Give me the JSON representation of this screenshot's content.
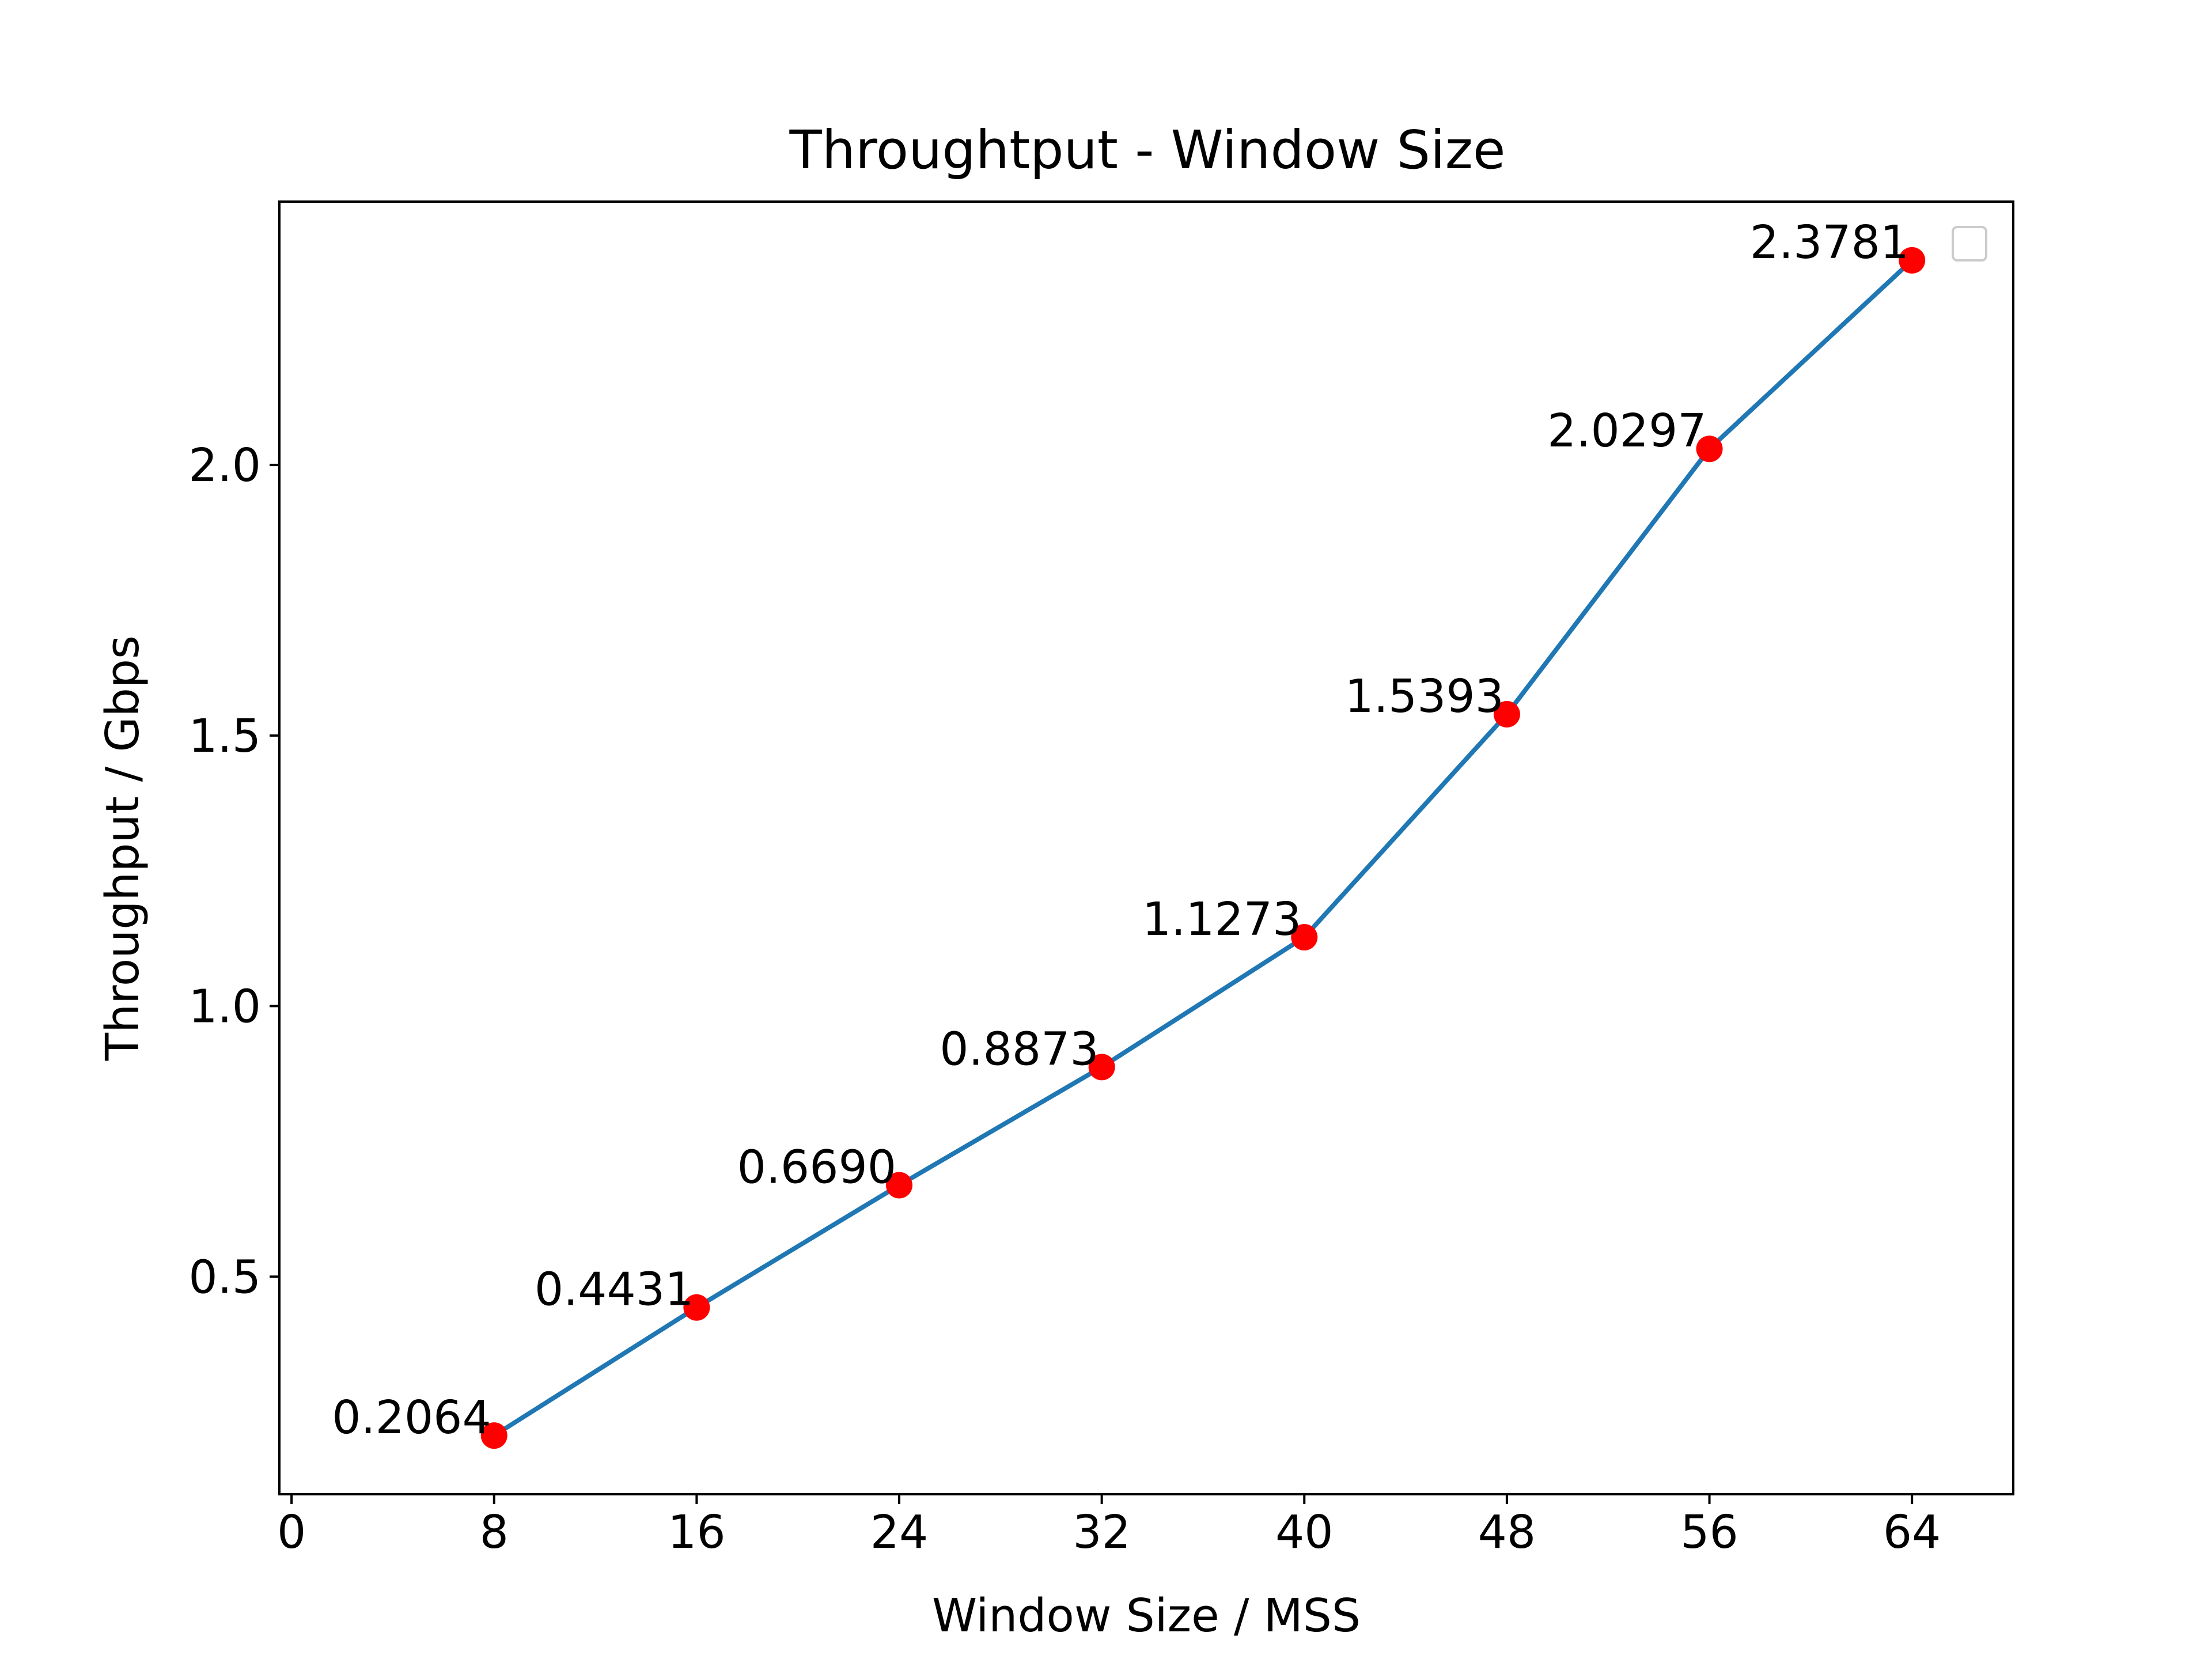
{
  "chart_data": {
    "type": "line",
    "title": "Throughtput - Window Size",
    "xlabel": "Window Size / MSS",
    "ylabel": "Throughput / Gbps",
    "x": [
      8,
      16,
      24,
      32,
      40,
      48,
      56,
      64
    ],
    "series": [
      {
        "values": [
          0.2064,
          0.4431,
          0.669,
          0.8873,
          1.1273,
          1.5393,
          2.0297,
          2.3781
        ],
        "line_color": "#1f77b4",
        "marker_color": "#ff0000"
      }
    ],
    "point_labels": [
      "0.2064",
      "0.4431",
      "0.6690",
      "0.8873",
      "1.1273",
      "1.5393",
      "2.0297",
      "2.3781"
    ],
    "xticks": [
      0,
      8,
      16,
      24,
      32,
      40,
      48,
      56,
      64
    ],
    "xtick_labels": [
      "0",
      "8",
      "16",
      "24",
      "32",
      "40",
      "48",
      "56",
      "64"
    ],
    "yticks": [
      0.5,
      1.0,
      1.5,
      2.0
    ],
    "ytick_labels": [
      "0.5",
      "1.0",
      "1.5",
      "2.0"
    ],
    "xlim": [
      -0.48,
      68.0
    ],
    "ylim": [
      0.0979,
      2.4866
    ],
    "grid": false,
    "legend": "top-right (empty)"
  }
}
